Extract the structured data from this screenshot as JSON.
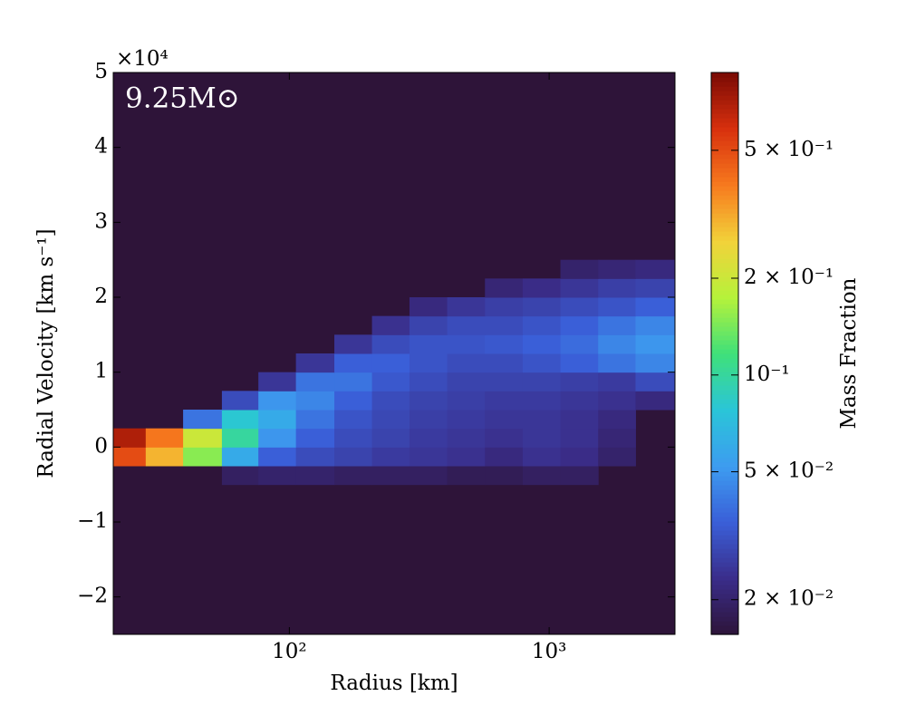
{
  "chart_data": {
    "type": "heatmap",
    "xlabel": "Radius [km]",
    "ylabel": "Radial Velocity [km s⁻¹]",
    "annotation": "9.25M⊙",
    "y_offset_label": "×10⁴",
    "colorbar_label": "Mass Fraction",
    "xscale": "log",
    "xlim": [
      21,
      3050
    ],
    "ylim": [
      -25000,
      50000
    ],
    "xticks": [
      {
        "value": 100,
        "label": "10²"
      },
      {
        "value": 1000,
        "label": "10³"
      }
    ],
    "yticks": [
      {
        "value": -20000,
        "label": "−2"
      },
      {
        "value": -10000,
        "label": "−1"
      },
      {
        "value": 0,
        "label": "0"
      },
      {
        "value": 10000,
        "label": "1"
      },
      {
        "value": 20000,
        "label": "2"
      },
      {
        "value": 30000,
        "label": "3"
      },
      {
        "value": 40000,
        "label": "4"
      },
      {
        "value": 50000,
        "label": "5"
      }
    ],
    "clim": [
      0.0156,
      0.873
    ],
    "cscale": "log",
    "cticks": [
      {
        "value": 0.02,
        "label": "2 × 10⁻²"
      },
      {
        "value": 0.05,
        "label": "5 × 10⁻²"
      },
      {
        "value": 0.1,
        "label": "10⁻¹"
      },
      {
        "value": 0.2,
        "label": "2 × 10⁻¹"
      },
      {
        "value": 0.5,
        "label": "5 × 10⁻¹"
      }
    ],
    "colormap": [
      "#2e1439",
      "#3a2d8a",
      "#3a5fd8",
      "#3d9cf0",
      "#2ac5d8",
      "#3fe07a",
      "#b6f23a",
      "#f2d23a",
      "#f77a1e",
      "#d8300e",
      "#7a0a04"
    ],
    "background": "#2e1439",
    "x_edges": [
      21,
      28,
      39,
      55,
      76,
      106,
      149,
      208,
      290,
      405,
      566,
      791,
      1105,
      1544,
      2150,
      3050
    ],
    "y_edges": [
      -5000,
      -2500,
      0,
      2500,
      5000,
      7500,
      10000,
      12500,
      15000,
      17500,
      20000,
      22500,
      25000
    ],
    "z": [
      [
        null,
        null,
        null,
        0.019,
        0.02,
        0.02,
        0.019,
        0.019,
        0.019,
        0.018,
        0.018,
        0.019,
        0.019,
        null,
        null
      ],
      [
        0.5,
        0.3,
        0.15,
        0.06,
        0.035,
        0.03,
        0.028,
        0.026,
        0.025,
        0.024,
        0.022,
        0.024,
        0.023,
        0.02,
        null
      ],
      [
        0.7,
        0.4,
        0.2,
        0.1,
        0.05,
        0.035,
        0.03,
        0.028,
        0.026,
        0.025,
        0.024,
        0.025,
        0.024,
        0.021,
        null
      ],
      [
        null,
        null,
        0.04,
        0.08,
        0.06,
        0.04,
        0.032,
        0.029,
        0.027,
        0.026,
        0.025,
        0.025,
        0.024,
        0.022,
        null
      ],
      [
        null,
        null,
        null,
        0.03,
        0.05,
        0.045,
        0.035,
        0.03,
        0.028,
        0.027,
        0.026,
        0.026,
        0.025,
        0.024,
        0.022
      ],
      [
        null,
        null,
        null,
        null,
        0.025,
        0.04,
        0.04,
        0.033,
        0.03,
        0.028,
        0.028,
        0.028,
        0.027,
        0.026,
        0.03
      ],
      [
        null,
        null,
        null,
        null,
        null,
        0.025,
        0.035,
        0.035,
        0.032,
        0.03,
        0.03,
        0.032,
        0.035,
        0.04,
        0.045
      ],
      [
        null,
        null,
        null,
        null,
        null,
        null,
        0.025,
        0.03,
        0.032,
        0.032,
        0.033,
        0.035,
        0.038,
        0.045,
        0.05
      ],
      [
        null,
        null,
        null,
        null,
        null,
        null,
        null,
        0.024,
        0.028,
        0.03,
        0.03,
        0.032,
        0.035,
        0.04,
        0.045
      ],
      [
        null,
        null,
        null,
        null,
        null,
        null,
        null,
        null,
        0.022,
        0.025,
        0.027,
        0.028,
        0.03,
        0.032,
        0.035
      ],
      [
        null,
        null,
        null,
        null,
        null,
        null,
        null,
        null,
        null,
        null,
        0.021,
        0.023,
        0.025,
        0.027,
        0.028
      ],
      [
        null,
        null,
        null,
        null,
        null,
        null,
        null,
        null,
        null,
        null,
        null,
        null,
        0.02,
        0.021,
        0.022
      ]
    ]
  }
}
